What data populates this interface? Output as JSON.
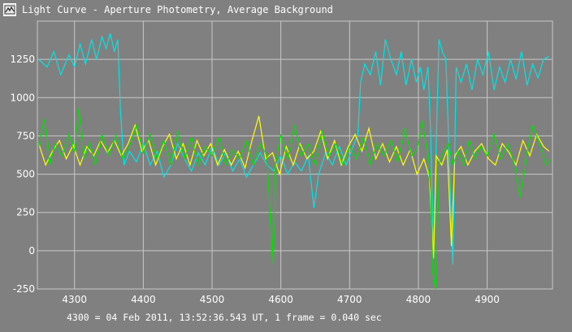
{
  "window": {
    "title": "Light Curve - Aperture Photometry, Average Background"
  },
  "footer": {
    "text": "4300 = 04 Feb 2011, 13:52:36.543 UT, 1 frame = 0.040 sec"
  },
  "colors": {
    "background": "#808080",
    "grid": "#c8c8c8",
    "axis_text": "#ffffff"
  },
  "icons": {
    "app": "light-curve-app-icon"
  },
  "chart_data": {
    "type": "line",
    "title": "Light Curve - Aperture Photometry, Average Background",
    "xlabel": "",
    "ylabel": "",
    "xlim": [
      4246,
      4995
    ],
    "ylim": [
      -250,
      1500
    ],
    "x_ticks": [
      4300,
      4400,
      4500,
      4600,
      4700,
      4800,
      4900
    ],
    "y_ticks": [
      -250,
      0,
      250,
      500,
      750,
      1000,
      1250
    ],
    "grid": true,
    "legend": "none",
    "series": [
      {
        "color": "#00e5e5",
        "points": [
          [
            4248,
            1250
          ],
          [
            4260,
            1200
          ],
          [
            4270,
            1300
          ],
          [
            4280,
            1150
          ],
          [
            4292,
            1280
          ],
          [
            4300,
            1200
          ],
          [
            4308,
            1350
          ],
          [
            4316,
            1220
          ],
          [
            4325,
            1380
          ],
          [
            4332,
            1250
          ],
          [
            4340,
            1400
          ],
          [
            4346,
            1320
          ],
          [
            4352,
            1420
          ],
          [
            4358,
            1300
          ],
          [
            4363,
            1380
          ],
          [
            4367,
            900
          ],
          [
            4372,
            560
          ],
          [
            4380,
            650
          ],
          [
            4390,
            580
          ],
          [
            4400,
            700
          ],
          [
            4410,
            560
          ],
          [
            4420,
            650
          ],
          [
            4430,
            480
          ],
          [
            4440,
            560
          ],
          [
            4450,
            700
          ],
          [
            4460,
            600
          ],
          [
            4470,
            520
          ],
          [
            4480,
            640
          ],
          [
            4490,
            560
          ],
          [
            4500,
            680
          ],
          [
            4510,
            560
          ],
          [
            4520,
            640
          ],
          [
            4530,
            520
          ],
          [
            4540,
            600
          ],
          [
            4550,
            480
          ],
          [
            4560,
            560
          ],
          [
            4570,
            640
          ],
          [
            4580,
            560
          ],
          [
            4590,
            520
          ],
          [
            4600,
            620
          ],
          [
            4610,
            500
          ],
          [
            4620,
            580
          ],
          [
            4630,
            520
          ],
          [
            4640,
            620
          ],
          [
            4648,
            280
          ],
          [
            4655,
            500
          ],
          [
            4665,
            640
          ],
          [
            4675,
            560
          ],
          [
            4685,
            680
          ],
          [
            4695,
            560
          ],
          [
            4705,
            680
          ],
          [
            4712,
            760
          ],
          [
            4716,
            1100
          ],
          [
            4722,
            1220
          ],
          [
            4730,
            1150
          ],
          [
            4738,
            1300
          ],
          [
            4745,
            1080
          ],
          [
            4752,
            1380
          ],
          [
            4760,
            1250
          ],
          [
            4768,
            1150
          ],
          [
            4775,
            1300
          ],
          [
            4782,
            1080
          ],
          [
            4790,
            1250
          ],
          [
            4797,
            1100
          ],
          [
            4803,
            1200
          ],
          [
            4808,
            1050
          ],
          [
            4814,
            1200
          ],
          [
            4818,
            750
          ],
          [
            4822,
            -40
          ],
          [
            4826,
            700
          ],
          [
            4830,
            1380
          ],
          [
            4835,
            1300
          ],
          [
            4840,
            1250
          ],
          [
            4845,
            600
          ],
          [
            4850,
            -90
          ],
          [
            4855,
            1200
          ],
          [
            4862,
            1100
          ],
          [
            4870,
            1220
          ],
          [
            4878,
            1050
          ],
          [
            4886,
            1250
          ],
          [
            4894,
            1150
          ],
          [
            4902,
            1300
          ],
          [
            4910,
            1050
          ],
          [
            4918,
            1200
          ],
          [
            4926,
            1100
          ],
          [
            4934,
            1250
          ],
          [
            4942,
            1120
          ],
          [
            4950,
            1300
          ],
          [
            4958,
            1080
          ],
          [
            4966,
            1220
          ],
          [
            4974,
            1130
          ],
          [
            4982,
            1250
          ],
          [
            4990,
            1270
          ]
        ]
      },
      {
        "color": "#ffff00",
        "points": [
          [
            4248,
            700
          ],
          [
            4258,
            560
          ],
          [
            4268,
            650
          ],
          [
            4278,
            720
          ],
          [
            4288,
            600
          ],
          [
            4298,
            690
          ],
          [
            4308,
            560
          ],
          [
            4318,
            680
          ],
          [
            4328,
            620
          ],
          [
            4338,
            720
          ],
          [
            4348,
            640
          ],
          [
            4358,
            720
          ],
          [
            4368,
            620
          ],
          [
            4378,
            700
          ],
          [
            4388,
            820
          ],
          [
            4398,
            650
          ],
          [
            4408,
            720
          ],
          [
            4418,
            560
          ],
          [
            4428,
            680
          ],
          [
            4438,
            760
          ],
          [
            4448,
            600
          ],
          [
            4458,
            700
          ],
          [
            4468,
            560
          ],
          [
            4478,
            720
          ],
          [
            4488,
            620
          ],
          [
            4498,
            700
          ],
          [
            4508,
            560
          ],
          [
            4518,
            660
          ],
          [
            4528,
            560
          ],
          [
            4538,
            650
          ],
          [
            4548,
            540
          ],
          [
            4558,
            720
          ],
          [
            4568,
            880
          ],
          [
            4578,
            600
          ],
          [
            4588,
            640
          ],
          [
            4598,
            500
          ],
          [
            4608,
            680
          ],
          [
            4618,
            560
          ],
          [
            4628,
            700
          ],
          [
            4638,
            600
          ],
          [
            4648,
            650
          ],
          [
            4658,
            780
          ],
          [
            4668,
            600
          ],
          [
            4678,
            720
          ],
          [
            4688,
            560
          ],
          [
            4698,
            680
          ],
          [
            4708,
            760
          ],
          [
            4718,
            650
          ],
          [
            4728,
            800
          ],
          [
            4738,
            600
          ],
          [
            4748,
            700
          ],
          [
            4758,
            580
          ],
          [
            4768,
            680
          ],
          [
            4778,
            560
          ],
          [
            4788,
            660
          ],
          [
            4798,
            500
          ],
          [
            4808,
            600
          ],
          [
            4816,
            480
          ],
          [
            4822,
            -50
          ],
          [
            4826,
            620
          ],
          [
            4834,
            560
          ],
          [
            4842,
            660
          ],
          [
            4848,
            30
          ],
          [
            4853,
            620
          ],
          [
            4862,
            680
          ],
          [
            4872,
            560
          ],
          [
            4882,
            650
          ],
          [
            4892,
            700
          ],
          [
            4902,
            600
          ],
          [
            4912,
            560
          ],
          [
            4922,
            700
          ],
          [
            4932,
            640
          ],
          [
            4942,
            560
          ],
          [
            4952,
            720
          ],
          [
            4962,
            620
          ],
          [
            4972,
            760
          ],
          [
            4982,
            680
          ],
          [
            4990,
            650
          ]
        ]
      },
      {
        "color": "#00e000",
        "points": [
          [
            4248,
            680
          ],
          [
            4256,
            860
          ],
          [
            4264,
            560
          ],
          [
            4272,
            700
          ],
          [
            4282,
            620
          ],
          [
            4292,
            760
          ],
          [
            4300,
            640
          ],
          [
            4306,
            930
          ],
          [
            4314,
            600
          ],
          [
            4322,
            700
          ],
          [
            4330,
            560
          ],
          [
            4340,
            760
          ],
          [
            4350,
            620
          ],
          [
            4360,
            750
          ],
          [
            4370,
            600
          ],
          [
            4380,
            680
          ],
          [
            4390,
            820
          ],
          [
            4400,
            640
          ],
          [
            4410,
            760
          ],
          [
            4420,
            600
          ],
          [
            4430,
            720
          ],
          [
            4440,
            560
          ],
          [
            4450,
            780
          ],
          [
            4460,
            600
          ],
          [
            4470,
            740
          ],
          [
            4480,
            560
          ],
          [
            4490,
            680
          ],
          [
            4500,
            620
          ],
          [
            4510,
            740
          ],
          [
            4520,
            560
          ],
          [
            4530,
            660
          ],
          [
            4540,
            600
          ],
          [
            4550,
            720
          ],
          [
            4560,
            560
          ],
          [
            4570,
            700
          ],
          [
            4580,
            620
          ],
          [
            4588,
            -90
          ],
          [
            4592,
            560
          ],
          [
            4600,
            760
          ],
          [
            4610,
            600
          ],
          [
            4620,
            820
          ],
          [
            4630,
            620
          ],
          [
            4640,
            700
          ],
          [
            4650,
            560
          ],
          [
            4660,
            780
          ],
          [
            4670,
            620
          ],
          [
            4680,
            700
          ],
          [
            4690,
            560
          ],
          [
            4700,
            680
          ],
          [
            4710,
            600
          ],
          [
            4720,
            740
          ],
          [
            4730,
            560
          ],
          [
            4740,
            700
          ],
          [
            4750,
            620
          ],
          [
            4760,
            720
          ],
          [
            4770,
            580
          ],
          [
            4780,
            800
          ],
          [
            4790,
            620
          ],
          [
            4798,
            660
          ],
          [
            4806,
            850
          ],
          [
            4814,
            600
          ],
          [
            4818,
            400
          ],
          [
            4821,
            -150
          ],
          [
            4825,
            -250
          ],
          [
            4829,
            560
          ],
          [
            4836,
            640
          ],
          [
            4844,
            700
          ],
          [
            4850,
            560
          ],
          [
            4858,
            650
          ],
          [
            4866,
            560
          ],
          [
            4874,
            720
          ],
          [
            4882,
            600
          ],
          [
            4890,
            680
          ],
          [
            4900,
            620
          ],
          [
            4910,
            760
          ],
          [
            4920,
            600
          ],
          [
            4930,
            700
          ],
          [
            4940,
            560
          ],
          [
            4948,
            350
          ],
          [
            4956,
            600
          ],
          [
            4966,
            820
          ],
          [
            4976,
            700
          ],
          [
            4986,
            560
          ],
          [
            4992,
            600
          ]
        ]
      }
    ]
  }
}
